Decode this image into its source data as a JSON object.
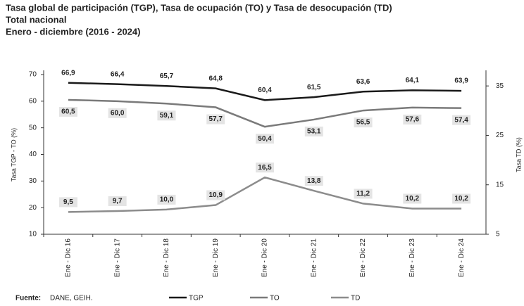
{
  "chart_data": {
    "type": "line",
    "title": "Tasa global de participación (TGP), Tasa de ocupación (TO) y Tasa de desocupación (TD)",
    "subtitle": "Total nacional",
    "period": "Enero - diciembre (2016 - 2024)",
    "y_label": "Tasa TGP - TO (%)",
    "y2_label": "Tasa TD (%)",
    "source_label": "Fuente:",
    "source": "DANE, GEIH.",
    "categories": [
      "Ene - Dic 16",
      "Ene - Dic 17",
      "Ene - Dic 18",
      "Ene - Dic 19",
      "Ene - Dic 20",
      "Ene - Dic 21",
      "Ene - Dic 22",
      "Ene - Dic 23",
      "Ene - Dic 24"
    ],
    "ylim": [
      10,
      70
    ],
    "yticks": [
      10,
      20,
      30,
      40,
      50,
      60,
      70
    ],
    "y2lim": [
      5,
      37.3
    ],
    "y2ticks": [
      5,
      15,
      25,
      35
    ],
    "series": [
      {
        "name": "TGP",
        "color": "#1a1a1a",
        "values": [
          66.9,
          66.4,
          65.7,
          64.8,
          60.4,
          61.5,
          63.6,
          64.1,
          63.9
        ],
        "value_labels": [
          "66,9",
          "66,4",
          "65,7",
          "64,8",
          "60,4",
          "61,5",
          "63,6",
          "64,1",
          "63,9"
        ]
      },
      {
        "name": "TO",
        "color": "#7a7a7a",
        "values": [
          60.5,
          60.0,
          59.1,
          57.7,
          50.4,
          53.1,
          56.5,
          57.6,
          57.4
        ],
        "value_labels": [
          "60,5",
          "60,0",
          "59,1",
          "57,7",
          "50,4",
          "53,1",
          "56,5",
          "57,6",
          "57,4"
        ]
      },
      {
        "name": "TD",
        "color": "#8c8c8c",
        "axis": "y2",
        "values": [
          9.5,
          9.7,
          10.0,
          10.9,
          16.5,
          13.8,
          11.2,
          10.2,
          10.2
        ],
        "value_labels": [
          "9,5",
          "9,7",
          "10,0",
          "10,9",
          "16,5",
          "13,8",
          "11,2",
          "10,2",
          "10,2"
        ]
      }
    ]
  }
}
